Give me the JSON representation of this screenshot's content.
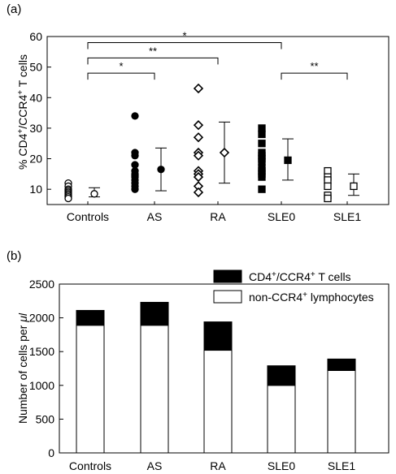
{
  "chart_data": [
    {
      "panel_label": "(a)",
      "type": "scatter",
      "ylabel_parts": [
        "% CD4",
        "+",
        "/CCR4",
        "+",
        " T cells"
      ],
      "ylim": [
        5,
        60
      ],
      "yticks": [
        10,
        20,
        30,
        40,
        50,
        60
      ],
      "categories": [
        "Controls",
        "AS",
        "RA",
        "SLE0",
        "SLE1"
      ],
      "grid": false,
      "groups": [
        {
          "name": "Controls",
          "marker": "open-circle",
          "points": [
            12,
            11,
            10,
            9.5,
            9,
            8.5,
            8,
            7.5,
            7
          ],
          "mean": 8.5,
          "sd_low": 7.5,
          "sd_high": 10.5
        },
        {
          "name": "AS",
          "marker": "filled-circle",
          "points": [
            34,
            22,
            21,
            18,
            16,
            15,
            14.5,
            14,
            13,
            12,
            11,
            10
          ],
          "mean": 16.5,
          "sd_low": 9.5,
          "sd_high": 23.5
        },
        {
          "name": "RA",
          "marker": "open-diamond",
          "points": [
            43,
            31,
            27,
            22,
            21,
            16,
            15,
            14,
            11,
            9
          ],
          "mean": 22,
          "sd_low": 12,
          "sd_high": 32
        },
        {
          "name": "SLE0",
          "marker": "filled-square",
          "points": [
            30,
            28,
            25,
            22,
            21,
            20,
            19,
            17,
            16,
            15,
            14,
            10
          ],
          "mean": 19.5,
          "sd_low": 13,
          "sd_high": 26.5
        },
        {
          "name": "SLE1",
          "marker": "open-square",
          "points": [
            16,
            14,
            13,
            11,
            8,
            7
          ],
          "mean": 11,
          "sd_low": 8,
          "sd_high": 15
        }
      ],
      "significance": [
        {
          "from": "Controls",
          "to": "AS",
          "label": "*",
          "y": 48
        },
        {
          "from": "Controls",
          "to": "RA",
          "label": "**",
          "y": 53
        },
        {
          "from": "Controls",
          "to": "SLE0",
          "label": "*",
          "y": 58
        },
        {
          "from": "SLE0",
          "to": "SLE1",
          "label": "**",
          "y": 48
        }
      ]
    },
    {
      "panel_label": "(b)",
      "type": "bar",
      "stacked": true,
      "ylabel_parts": [
        "Number of cells per ",
        "μ",
        "l"
      ],
      "ylim": [
        0,
        2500
      ],
      "yticks": [
        0,
        500,
        1000,
        1500,
        2000,
        2500
      ],
      "categories": [
        "Controls",
        "AS",
        "RA",
        "SLE0",
        "SLE1"
      ],
      "legend_position": "top-right",
      "series": [
        {
          "name": "non-CCR4+ lymphocytes",
          "legend_parts": [
            "non-CCR4",
            "+",
            " lymphocytes"
          ],
          "color": "#ffffff",
          "values": [
            1890,
            1890,
            1520,
            1000,
            1220
          ]
        },
        {
          "name": "CD4+/CCR4+ T cells",
          "legend_parts": [
            "CD4",
            "+",
            "/CCR4",
            "+",
            " T cells"
          ],
          "color": "#000000",
          "values": [
            220,
            340,
            420,
            290,
            170
          ]
        }
      ]
    }
  ]
}
